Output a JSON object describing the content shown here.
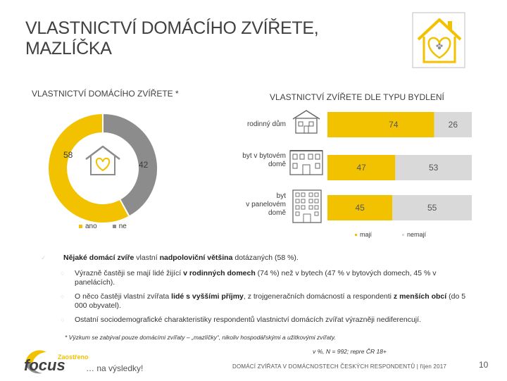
{
  "title_lines": [
    "VLASTNICTVÍ DOMÁCÍHO ZVÍŘETE,",
    "MAZLÍČKA"
  ],
  "left_subtitle": "VLASTNICTVÍ DOMÁCÍHO ZVÍŘETE *",
  "right_subtitle": "VLASTNICTVÍ ZVÍŘETE DLE TYPU BYDLENÍ",
  "colors": {
    "accent": "#f2c200",
    "gray": "#8c8c8c",
    "light": "#d9d9d9"
  },
  "icons": [
    "house-heart-icon",
    "house-icon",
    "apartment-building-icon",
    "panel-building-icon",
    "house-heart-paw-icon"
  ],
  "chart_data": [
    {
      "type": "pie",
      "donut": true,
      "categories": [
        "ano",
        "ne"
      ],
      "values": [
        58,
        42
      ],
      "value_labels": [
        "58",
        "42"
      ],
      "legend": [
        "ano",
        "ne"
      ],
      "legend_position": "bottom-left"
    },
    {
      "type": "bar",
      "stacked": true,
      "orientation": "horizontal",
      "categories": [
        "rodinný dům",
        "byt v bytovém domě",
        "byt v panelovém domě"
      ],
      "category_lines": [
        [
          "rodinný dům"
        ],
        [
          "byt v bytovém",
          "domě"
        ],
        [
          "byt",
          "v panelovém",
          "domě"
        ]
      ],
      "series": [
        {
          "name": "mají",
          "values": [
            74,
            47,
            45
          ],
          "labels": [
            "74",
            "47",
            "45"
          ]
        },
        {
          "name": "nemají",
          "values": [
            26,
            53,
            55
          ],
          "labels": [
            "26",
            "53",
            "55"
          ]
        }
      ],
      "xlim": [
        0,
        100
      ],
      "legend_position": "bottom"
    }
  ],
  "bullets": {
    "main": [
      {
        "t": "Nějaké domácí zvíře",
        "b": true
      },
      {
        "t": " vlastní ",
        "b": false
      },
      {
        "t": "nadpoloviční většina",
        "b": true
      },
      {
        "t": " dotázaných (58 %).",
        "b": false
      }
    ],
    "sub": [
      [
        {
          "t": "Výrazně častěji se mají lidé žijící ",
          "b": false
        },
        {
          "t": "v rodinných domech",
          "b": true
        },
        {
          "t": " (74 %) než v bytech (47 % v bytových domech, 45 % v panelácích).",
          "b": false
        }
      ],
      [
        {
          "t": "O něco častěji vlastní zvířata ",
          "b": false
        },
        {
          "t": "lidé s vyššími příjmy",
          "b": true
        },
        {
          "t": ", z trojgeneračních domácností a respondenti ",
          "b": false
        },
        {
          "t": "z menších obcí",
          "b": true
        },
        {
          "t": " (do 5 000 obyvatel).",
          "b": false
        }
      ],
      [
        {
          "t": "Ostatní sociodemografické charakteristiky respondentů vlastnictví domácích zvířat výrazněji nediferencují.",
          "b": false
        }
      ]
    ]
  },
  "footnote": "* Výzkum se zabýval pouze domácími zvířaty – „mazlíčky“, nikoliv hospodářskými a užitkovými zvířaty.",
  "base_note": "v %, N = 992; repre ČR 18+",
  "footer_text": "DOMÁCÍ ZVÍŘATA V DOMÁCNOSTECH ČESKÝCH RESPONDENTŮ | říjen 2017",
  "page_number": "10",
  "brand": {
    "tagline": "Zaostřeno",
    "name": "focus",
    "slogan": "… na výsledky!"
  }
}
